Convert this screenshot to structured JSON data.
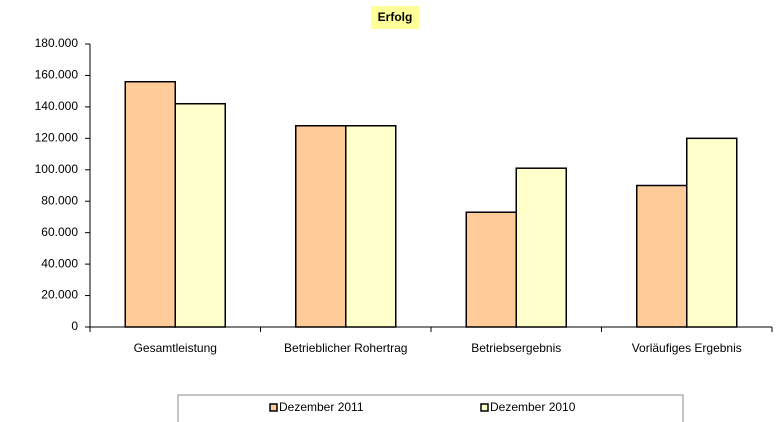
{
  "chart_data": {
    "type": "bar",
    "title": "Erfolg",
    "categories": [
      "Gesamtleistung",
      "Betrieblicher Rohertrag",
      "Betriebsergebnis",
      "Vorläufiges Ergebnis"
    ],
    "series": [
      {
        "name": "Dezember 2011",
        "color": "#ffcc99",
        "values": [
          156000,
          128000,
          73000,
          90000
        ]
      },
      {
        "name": "Dezember 2010",
        "color": "#ffffcc",
        "values": [
          142000,
          128000,
          101000,
          120000
        ]
      }
    ],
    "ylim": [
      0,
      180000
    ],
    "yticks": [
      0,
      {
        "value": 20000,
        "label": "20.000"
      },
      {
        "value": 40000,
        "label": "40.000"
      },
      {
        "value": 60000,
        "label": "60.000"
      },
      {
        "value": 80000,
        "label": "80.000"
      },
      {
        "value": 100000,
        "label": "100.000"
      },
      {
        "value": 120000,
        "label": "120.000"
      },
      {
        "value": 140000,
        "label": "140.000"
      },
      {
        "value": 160000,
        "label": "160.000"
      },
      {
        "value": 180000,
        "label": "180.000"
      }
    ],
    "grid": false,
    "legend": "bottom"
  }
}
